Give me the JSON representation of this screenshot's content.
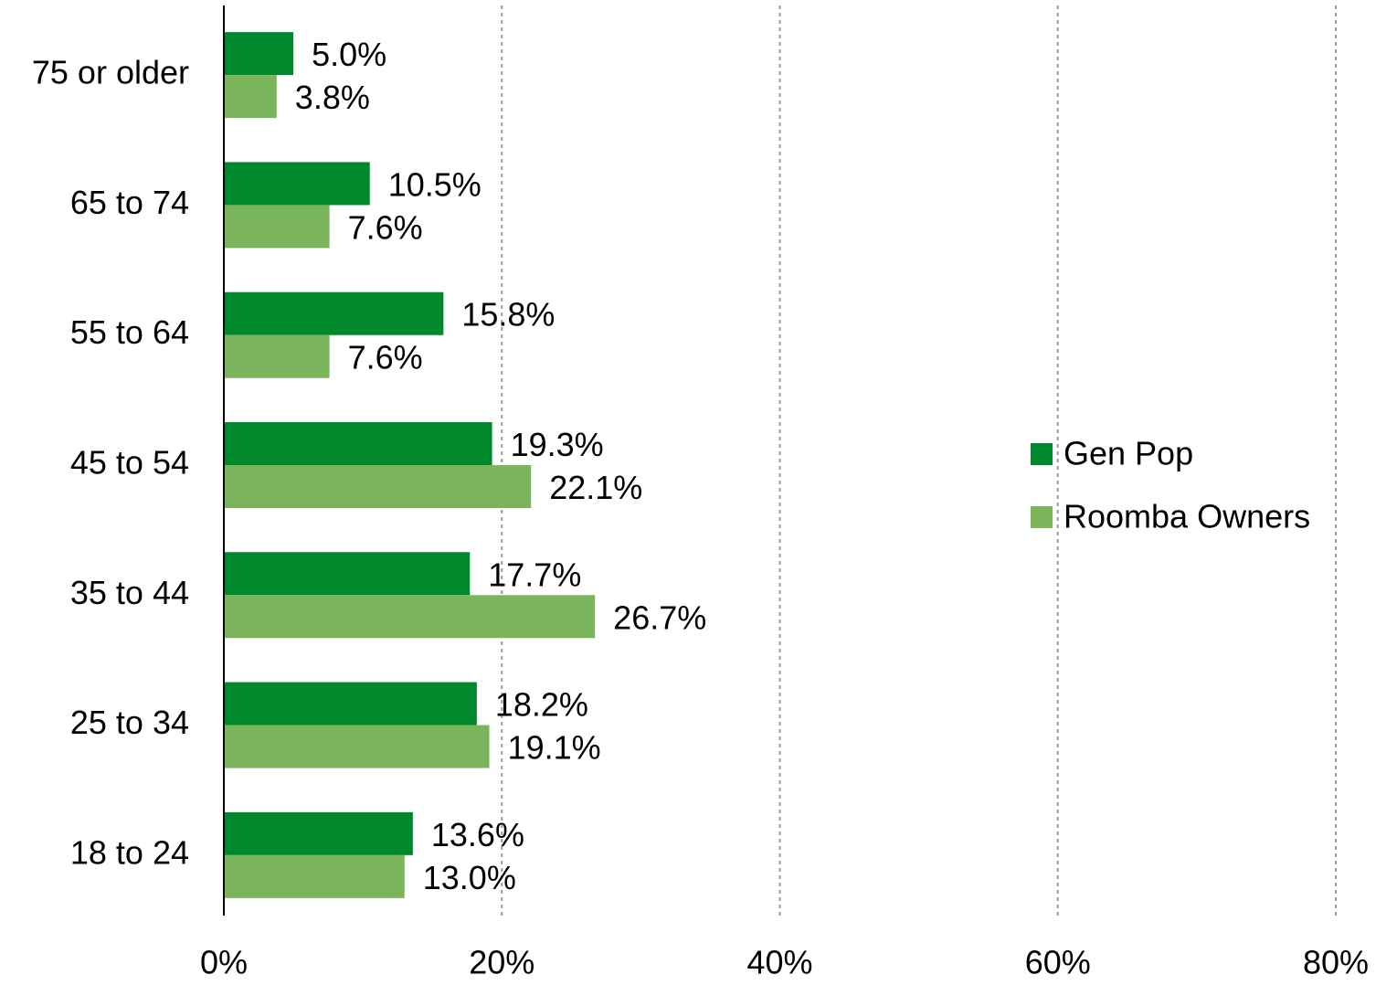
{
  "chart_data": {
    "type": "barh",
    "categories": [
      "75 or older",
      "65 to 74",
      "55 to 64",
      "45 to 54",
      "35 to 44",
      "25 to 34",
      "18 to 24"
    ],
    "series": [
      {
        "name": "Gen Pop",
        "color": "#00882d",
        "values": [
          5.0,
          10.5,
          15.8,
          19.3,
          17.7,
          18.2,
          13.6
        ],
        "value_labels": [
          "5.0%",
          "10.5%",
          "15.8%",
          "19.3%",
          "17.7%",
          "18.2%",
          "13.6%"
        ]
      },
      {
        "name": "Roomba Owners",
        "color": "#7ab55c",
        "values": [
          3.8,
          7.6,
          7.6,
          22.1,
          26.7,
          19.1,
          13.0
        ],
        "value_labels": [
          "3.8%",
          "7.6%",
          "7.6%",
          "22.1%",
          "26.7%",
          "19.1%",
          "13.0%"
        ]
      }
    ],
    "xlim": [
      0,
      80
    ],
    "xticks": [
      {
        "value": 0,
        "label": "0%"
      },
      {
        "value": 20,
        "label": "20%"
      },
      {
        "value": 40,
        "label": "40%"
      },
      {
        "value": 60,
        "label": "60%"
      },
      {
        "value": 80,
        "label": "80%"
      }
    ],
    "grid": true,
    "legend": "right"
  }
}
